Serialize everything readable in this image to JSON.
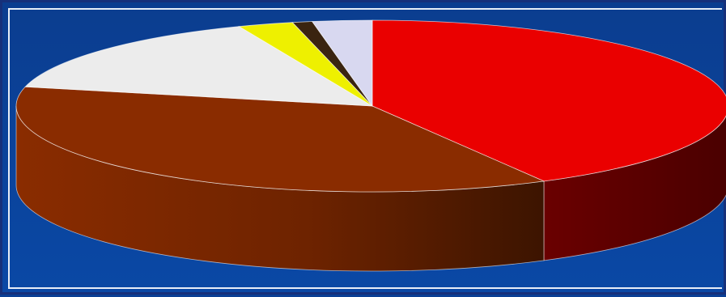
{
  "chart_data": {
    "type": "pie",
    "style": "3d",
    "legend": "none",
    "slices": [
      {
        "value": 42.0,
        "color": "#ea0000",
        "side_color": "#5c0000"
      },
      {
        "value": 36.6,
        "color": "#8a2c00",
        "side_color": "#7a2700"
      },
      {
        "value": 15.3,
        "color": "#ececec",
        "side_color": "#bdbdbd"
      },
      {
        "value": 2.5,
        "color": "#eef000",
        "side_color": "#a8a800"
      },
      {
        "value": 0.9,
        "color": "#3a2410",
        "side_color": "#241508"
      },
      {
        "value": 2.7,
        "color": "#d8d8f0",
        "side_color": "#a7a7c2"
      }
    ],
    "colors": {
      "background": "#0a3f95",
      "frame_border": "#e8eef7"
    }
  }
}
